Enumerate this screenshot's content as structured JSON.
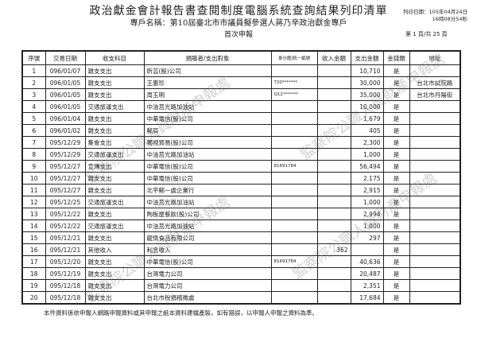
{
  "header": {
    "title": "政治獻金會計報告書查閱制度電腦系統查詢結果列印清單",
    "account_name": "專戶名稱：第10屆臺北市市議員擬參選人蔣乃辛政治獻金專戶",
    "filing_type": "首次申報",
    "print_date_line1": "列印日期：105年04月24日",
    "print_date_line2": "16時08分54秒",
    "page_info": "第 1 頁/共 25 頁"
  },
  "table": {
    "columns": [
      "序號",
      "交易日期",
      "收支科目",
      "捐贈者/支出對象",
      "身分證/統一編號",
      "收入金額",
      "支出金額",
      "金錢類",
      "地址"
    ],
    "rows": [
      {
        "no": "1",
        "date": "096/01/07",
        "item": "雜支支出",
        "party": "昕芸(股)公司",
        "id": "",
        "income": "",
        "expense": "10,710",
        "cash": "是",
        "address": ""
      },
      {
        "no": "2",
        "date": "096/01/05",
        "item": "雜支支出",
        "party": "王惠珍",
        "id": "T20*******",
        "income": "",
        "expense": "30,000",
        "cash": "是",
        "address": "台北市試院路"
      },
      {
        "no": "3",
        "date": "096/01/05",
        "item": "雜支支出",
        "party": "周玉明",
        "id": "Q12*******",
        "income": "",
        "expense": "35,000",
        "cash": "是",
        "address": "台北市丹陽街"
      },
      {
        "no": "4",
        "date": "096/01/05",
        "item": "交通旅運支出",
        "party": "中油莒光路加油站",
        "id": "",
        "income": "",
        "expense": "10,000",
        "cash": "是",
        "address": ""
      },
      {
        "no": "5",
        "date": "096/01/04",
        "item": "雜支支出",
        "party": "中華電信(股)公司",
        "id": "",
        "income": "",
        "expense": "1,679",
        "cash": "是",
        "address": ""
      },
      {
        "no": "6",
        "date": "096/01/02",
        "item": "雜支支出",
        "party": "郵局",
        "id": "",
        "income": "",
        "expense": "405",
        "cash": "是",
        "address": ""
      },
      {
        "no": "7",
        "date": "095/12/29",
        "item": "集會支出",
        "party": "獨視貿易(股)公司",
        "id": "",
        "income": "",
        "expense": "2,300",
        "cash": "是",
        "address": ""
      },
      {
        "no": "8",
        "date": "095/12/29",
        "item": "交通旅運支出",
        "party": "中油莒光路加油站",
        "id": "",
        "income": "",
        "expense": "1,000",
        "cash": "是",
        "address": ""
      },
      {
        "no": "9",
        "date": "095/12/27",
        "item": "宣傳支出",
        "party": "中華電信(股)公司",
        "id": "81691784",
        "income": "",
        "expense": "56,494",
        "cash": "是",
        "address": ""
      },
      {
        "no": "10",
        "date": "095/12/27",
        "item": "雜支支出",
        "party": "中華電信(股)公司",
        "id": "",
        "income": "",
        "expense": "2,175",
        "cash": "是",
        "address": ""
      },
      {
        "no": "11",
        "date": "095/12/27",
        "item": "雜支支出",
        "party": "北平郵一處企業行",
        "id": "",
        "income": "",
        "expense": "2,915",
        "cash": "是",
        "address": ""
      },
      {
        "no": "12",
        "date": "095/12/25",
        "item": "交通旅運支出",
        "party": "中油莒光路加油站",
        "id": "",
        "income": "",
        "expense": "1,000",
        "cash": "是",
        "address": ""
      },
      {
        "no": "13",
        "date": "095/12/22",
        "item": "雜支支出",
        "party": "陶板屋餐飲(股)公司",
        "id": "",
        "income": "",
        "expense": "2,994",
        "cash": "是",
        "address": ""
      },
      {
        "no": "14",
        "date": "095/12/22",
        "item": "交通旅運支出",
        "party": "中油莒光路加油站",
        "id": "",
        "income": "",
        "expense": "1,000",
        "cash": "是",
        "address": ""
      },
      {
        "no": "15",
        "date": "095/12/21",
        "item": "雜支支出",
        "party": "龍情食品有限公司",
        "id": "",
        "income": "",
        "expense": "297",
        "cash": "是",
        "address": ""
      },
      {
        "no": "16",
        "date": "095/12/21",
        "item": "其他收入",
        "party": "利息收入",
        "id": "",
        "income": "362",
        "expense": "",
        "cash": "是",
        "address": ""
      },
      {
        "no": "17",
        "date": "095/12/20",
        "item": "雜支支出",
        "party": "中華電信(股)公司",
        "id": "81691784",
        "income": "",
        "expense": "40,636",
        "cash": "是",
        "address": ""
      },
      {
        "no": "18",
        "date": "095/12/19",
        "item": "雜支支出",
        "party": "台灣電力公司",
        "id": "",
        "income": "",
        "expense": "20,487",
        "cash": "是",
        "address": ""
      },
      {
        "no": "19",
        "date": "095/12/18",
        "item": "雜支支出",
        "party": "台灣電力公司",
        "id": "",
        "income": "",
        "expense": "2,351",
        "cash": "是",
        "address": ""
      },
      {
        "no": "20",
        "date": "095/12/18",
        "item": "雜支支出",
        "party": "台北市稅捐稽徵處",
        "id": "",
        "income": "",
        "expense": "17,684",
        "cash": "是",
        "address": ""
      }
    ]
  },
  "footer": "本件資料係依申報人網路申報資料或其申報之紙本資料建檔產製，如有錯誤，以申報人申報之資料為準。",
  "watermark": "監察院公職人員財產申報處"
}
